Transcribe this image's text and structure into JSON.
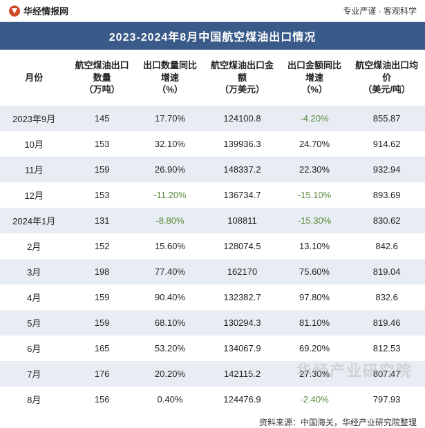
{
  "topbar": {
    "brand": "华经情报网",
    "tagline": "专业严谨 · 客观科学"
  },
  "title": "2023-2024年8月中国航空煤油出口情况",
  "columns": [
    "月份",
    "航空煤油出口数量\n（万吨）",
    "出口数量同比增速\n（%）",
    "航空煤油出口金额\n（万美元）",
    "出口金额同比增速\n（%）",
    "航空煤油出口均价\n（美元/吨）"
  ],
  "col_widths": [
    "16%",
    "16%",
    "16%",
    "18%",
    "16%",
    "18%"
  ],
  "rows": [
    {
      "month": "2023年9月",
      "qty": "145",
      "qty_yoy": "17.70%",
      "qty_yoy_neg": false,
      "amt": "124100.8",
      "amt_yoy": "-4.20%",
      "amt_yoy_neg": true,
      "price": "855.87"
    },
    {
      "month": "10月",
      "qty": "153",
      "qty_yoy": "32.10%",
      "qty_yoy_neg": false,
      "amt": "139936.3",
      "amt_yoy": "24.70%",
      "amt_yoy_neg": false,
      "price": "914.62"
    },
    {
      "month": "11月",
      "qty": "159",
      "qty_yoy": "26.90%",
      "qty_yoy_neg": false,
      "amt": "148337.2",
      "amt_yoy": "22.30%",
      "amt_yoy_neg": false,
      "price": "932.94"
    },
    {
      "month": "12月",
      "qty": "153",
      "qty_yoy": "-11.20%",
      "qty_yoy_neg": true,
      "amt": "136734.7",
      "amt_yoy": "-15.10%",
      "amt_yoy_neg": true,
      "price": "893.69"
    },
    {
      "month": "2024年1月",
      "qty": "131",
      "qty_yoy": "-8.80%",
      "qty_yoy_neg": true,
      "amt": "108811",
      "amt_yoy": "-15.30%",
      "amt_yoy_neg": true,
      "price": "830.62"
    },
    {
      "month": "2月",
      "qty": "152",
      "qty_yoy": "15.60%",
      "qty_yoy_neg": false,
      "amt": "128074.5",
      "amt_yoy": "13.10%",
      "amt_yoy_neg": false,
      "price": "842.6"
    },
    {
      "month": "3月",
      "qty": "198",
      "qty_yoy": "77.40%",
      "qty_yoy_neg": false,
      "amt": "162170",
      "amt_yoy": "75.60%",
      "amt_yoy_neg": false,
      "price": "819.04"
    },
    {
      "month": "4月",
      "qty": "159",
      "qty_yoy": "90.40%",
      "qty_yoy_neg": false,
      "amt": "132382.7",
      "amt_yoy": "97.80%",
      "amt_yoy_neg": false,
      "price": "832.6"
    },
    {
      "month": "5月",
      "qty": "159",
      "qty_yoy": "68.10%",
      "qty_yoy_neg": false,
      "amt": "130294.3",
      "amt_yoy": "81.10%",
      "amt_yoy_neg": false,
      "price": "819.46"
    },
    {
      "month": "6月",
      "qty": "165",
      "qty_yoy": "53.20%",
      "qty_yoy_neg": false,
      "amt": "134067.9",
      "amt_yoy": "69.20%",
      "amt_yoy_neg": false,
      "price": "812.53"
    },
    {
      "month": "7月",
      "qty": "176",
      "qty_yoy": "20.20%",
      "qty_yoy_neg": false,
      "amt": "142115.2",
      "amt_yoy": "27.30%",
      "amt_yoy_neg": false,
      "price": "807.47"
    },
    {
      "month": "8月",
      "qty": "156",
      "qty_yoy": "0.40%",
      "qty_yoy_neg": false,
      "amt": "124476.9",
      "amt_yoy": "-2.40%",
      "amt_yoy_neg": true,
      "price": "797.93"
    }
  ],
  "source": "资料来源：中国海关，华经产业研究院整理",
  "watermark": "华经产业研究院",
  "colors": {
    "title_bg": "#3a5a8a",
    "row_odd_bg": "#e8edf4",
    "row_even_bg": "#ffffff",
    "neg_color": "#5a8a3a",
    "text_color": "#222222"
  }
}
